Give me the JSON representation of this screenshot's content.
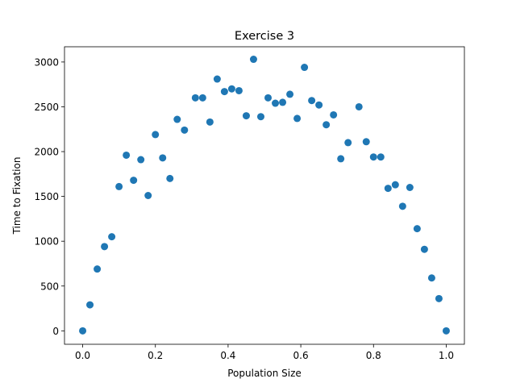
{
  "chart_data": {
    "type": "scatter",
    "title": "Exercise 3",
    "xlabel": "Population Size",
    "ylabel": "Time to Fixation",
    "xlim": [
      -0.05,
      1.05
    ],
    "ylim": [
      -150,
      3170
    ],
    "xticks": [
      0.0,
      0.2,
      0.4,
      0.6,
      0.8,
      1.0
    ],
    "xtick_labels": [
      "0.0",
      "0.2",
      "0.4",
      "0.6",
      "0.8",
      "1.0"
    ],
    "yticks": [
      0,
      500,
      1000,
      1500,
      2000,
      2500,
      3000
    ],
    "ytick_labels": [
      "0",
      "500",
      "1000",
      "1500",
      "2000",
      "2500",
      "3000"
    ],
    "grid": false,
    "marker_color": "#1f77b4",
    "x": [
      0.0,
      0.02,
      0.04,
      0.06,
      0.08,
      0.1,
      0.12,
      0.14,
      0.16,
      0.18,
      0.2,
      0.22,
      0.24,
      0.26,
      0.28,
      0.31,
      0.33,
      0.35,
      0.37,
      0.39,
      0.41,
      0.43,
      0.45,
      0.47,
      0.49,
      0.51,
      0.53,
      0.55,
      0.57,
      0.59,
      0.61,
      0.63,
      0.65,
      0.67,
      0.69,
      0.71,
      0.73,
      0.76,
      0.78,
      0.8,
      0.82,
      0.84,
      0.86,
      0.88,
      0.9,
      0.92,
      0.94,
      0.96,
      0.98,
      1.0
    ],
    "y": [
      0,
      290,
      690,
      940,
      1050,
      1610,
      1960,
      1680,
      1910,
      1510,
      2190,
      1930,
      1700,
      2360,
      2240,
      2600,
      2600,
      2330,
      2810,
      2670,
      2700,
      2680,
      2400,
      3030,
      2390,
      2600,
      2540,
      2550,
      2640,
      2370,
      2940,
      2570,
      2520,
      2300,
      2410,
      1920,
      2100,
      2500,
      2110,
      1940,
      1940,
      1590,
      1630,
      1390,
      1600,
      1140,
      910,
      590,
      360,
      0
    ]
  }
}
